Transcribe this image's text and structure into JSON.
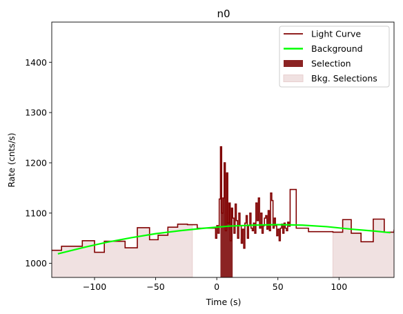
{
  "chart_data": {
    "type": "line",
    "title": "n0",
    "xlabel": "Time (s)",
    "ylabel": "Rate (cnts/s)",
    "xlim": [
      -135,
      145
    ],
    "ylim": [
      972,
      1480
    ],
    "xticks": [
      -100,
      -50,
      0,
      50,
      100
    ],
    "yticks": [
      1000,
      1100,
      1200,
      1300,
      1400
    ],
    "grid": false,
    "legend_placement": "top-right",
    "legend": [
      "Light Curve",
      "Background",
      "Selection",
      "Bkg. Selections"
    ],
    "colors": {
      "light_curve": "#800000",
      "background": "#00ff00",
      "selection": "#8b2323",
      "bkg_selection": "#f0e1e1",
      "bkg_selection_edge": "#e8cfcf"
    },
    "bkg_selections": [
      [
        -135,
        -20
      ],
      [
        95,
        145
      ]
    ],
    "selection": [
      3,
      13
    ],
    "light_curve": {
      "x": [
        -135,
        -127,
        -110,
        -100,
        -92,
        -75,
        -65,
        -55,
        -48,
        -40,
        -32,
        -24,
        -16,
        -2,
        -1,
        0,
        1,
        2,
        3,
        4,
        5,
        6,
        7,
        8,
        9,
        10,
        11,
        12,
        13,
        14,
        15,
        16,
        17,
        18,
        19,
        20,
        21,
        22,
        23,
        24,
        25,
        26,
        27,
        28,
        29,
        30,
        31,
        32,
        33,
        34,
        35,
        36,
        37,
        38,
        39,
        40,
        41,
        42,
        43,
        44,
        45,
        46,
        47,
        48,
        49,
        50,
        51,
        52,
        53,
        54,
        55,
        56,
        57,
        58,
        59,
        60,
        65,
        75,
        95,
        103,
        110,
        118,
        128,
        137,
        145
      ],
      "y": [
        1026,
        1034,
        1045,
        1022,
        1044,
        1031,
        1071,
        1047,
        1056,
        1072,
        1078,
        1077,
        1070,
        1070,
        1050,
        1075,
        1060,
        1128,
        1232,
        1100,
        1130,
        1200,
        1065,
        1180,
        1080,
        1120,
        1045,
        1110,
        1090,
        1060,
        1118,
        1085,
        1050,
        1100,
        1075,
        1040,
        1068,
        1030,
        1080,
        1095,
        1050,
        1075,
        1100,
        1070,
        1065,
        1080,
        1060,
        1120,
        1085,
        1130,
        1070,
        1100,
        1060,
        1075,
        1090,
        1095,
        1068,
        1105,
        1065,
        1140,
        1125,
        1070,
        1090,
        1075,
        1055,
        1068,
        1045,
        1070,
        1078,
        1060,
        1080,
        1070,
        1065,
        1082,
        1074,
        1147,
        1070,
        1063,
        1062,
        1087,
        1060,
        1043,
        1088,
        1062,
        1067
      ]
    },
    "background": {
      "x": [
        -130,
        -110,
        -90,
        -70,
        -50,
        -30,
        -10,
        10,
        30,
        50,
        70,
        90,
        110,
        130,
        142
      ],
      "y": [
        1019,
        1031,
        1042,
        1051,
        1059,
        1065,
        1070,
        1074,
        1076,
        1077,
        1076,
        1073,
        1068,
        1064,
        1061
      ]
    }
  }
}
